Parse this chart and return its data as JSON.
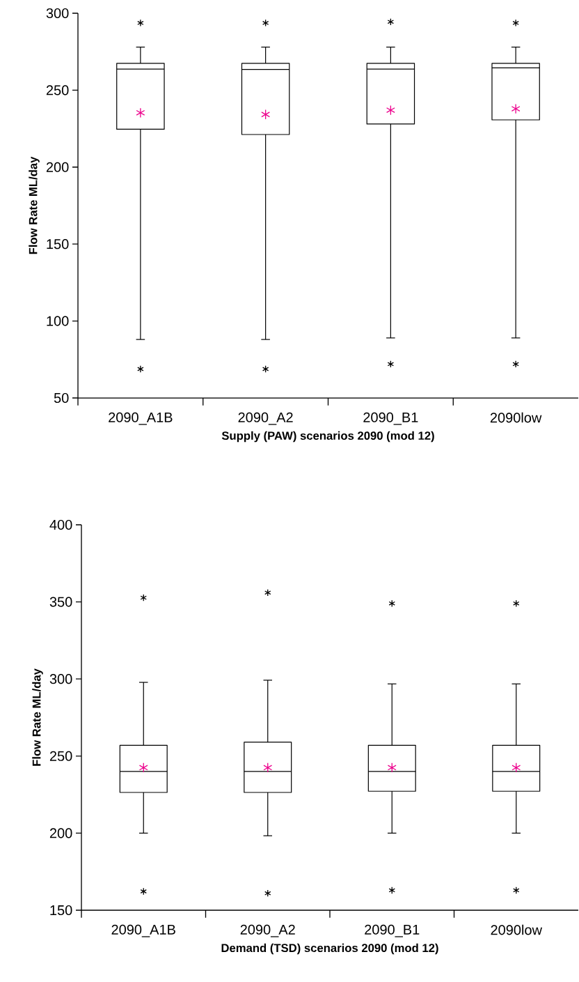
{
  "chart_data": [
    {
      "type": "box",
      "categories": [
        "2090_A1B",
        "2090_A2",
        "2090_B1",
        "2090low"
      ],
      "xlabel": "Supply (PAW) scenarios 2090 (mod 12)",
      "ylabel": "Flow Rate ML/day",
      "ylim": [
        50,
        300
      ],
      "yticks": [
        50,
        100,
        150,
        200,
        250,
        300
      ],
      "boxes": [
        {
          "low": 88,
          "q1": 224.6,
          "median": 263.7,
          "q3": 267.4,
          "high": 278,
          "mean": 235.3,
          "outliers": [
            293.7,
            68.8
          ]
        },
        {
          "low": 88,
          "q1": 221.2,
          "median": 263.5,
          "q3": 267.4,
          "high": 278,
          "mean": 234.2,
          "outliers": [
            293.7,
            68.8
          ]
        },
        {
          "low": 89,
          "q1": 228,
          "median": 263.7,
          "q3": 267.4,
          "high": 278,
          "mean": 237,
          "outliers": [
            294.4,
            72
          ]
        },
        {
          "low": 89,
          "q1": 230.7,
          "median": 264.5,
          "q3": 267.4,
          "high": 278,
          "mean": 237.9,
          "outliers": [
            293.7,
            72
          ]
        }
      ]
    },
    {
      "type": "box",
      "categories": [
        "2090_A1B",
        "2090_A2",
        "2090_B1",
        "2090low"
      ],
      "xlabel": "Demand (TSD) scenarios 2090 (mod 12)",
      "ylabel": "Flow Rate ML/day",
      "ylim": [
        150,
        400
      ],
      "yticks": [
        150,
        200,
        250,
        300,
        350,
        400
      ],
      "boxes": [
        {
          "low": 200,
          "q1": 226.4,
          "median": 240,
          "q3": 257,
          "high": 297.8,
          "mean": 242.5,
          "outliers": [
            352.7,
            162.2
          ]
        },
        {
          "low": 198.3,
          "q1": 226.4,
          "median": 240,
          "q3": 259,
          "high": 299.2,
          "mean": 242.5,
          "outliers": [
            356,
            161
          ]
        },
        {
          "low": 200,
          "q1": 227.2,
          "median": 240,
          "q3": 257,
          "high": 296.8,
          "mean": 242.5,
          "outliers": [
            349,
            162.9
          ]
        },
        {
          "low": 200,
          "q1": 227.2,
          "median": 240,
          "q3": 257,
          "high": 296.8,
          "mean": 242.5,
          "outliers": [
            349,
            162.9
          ]
        }
      ]
    }
  ]
}
